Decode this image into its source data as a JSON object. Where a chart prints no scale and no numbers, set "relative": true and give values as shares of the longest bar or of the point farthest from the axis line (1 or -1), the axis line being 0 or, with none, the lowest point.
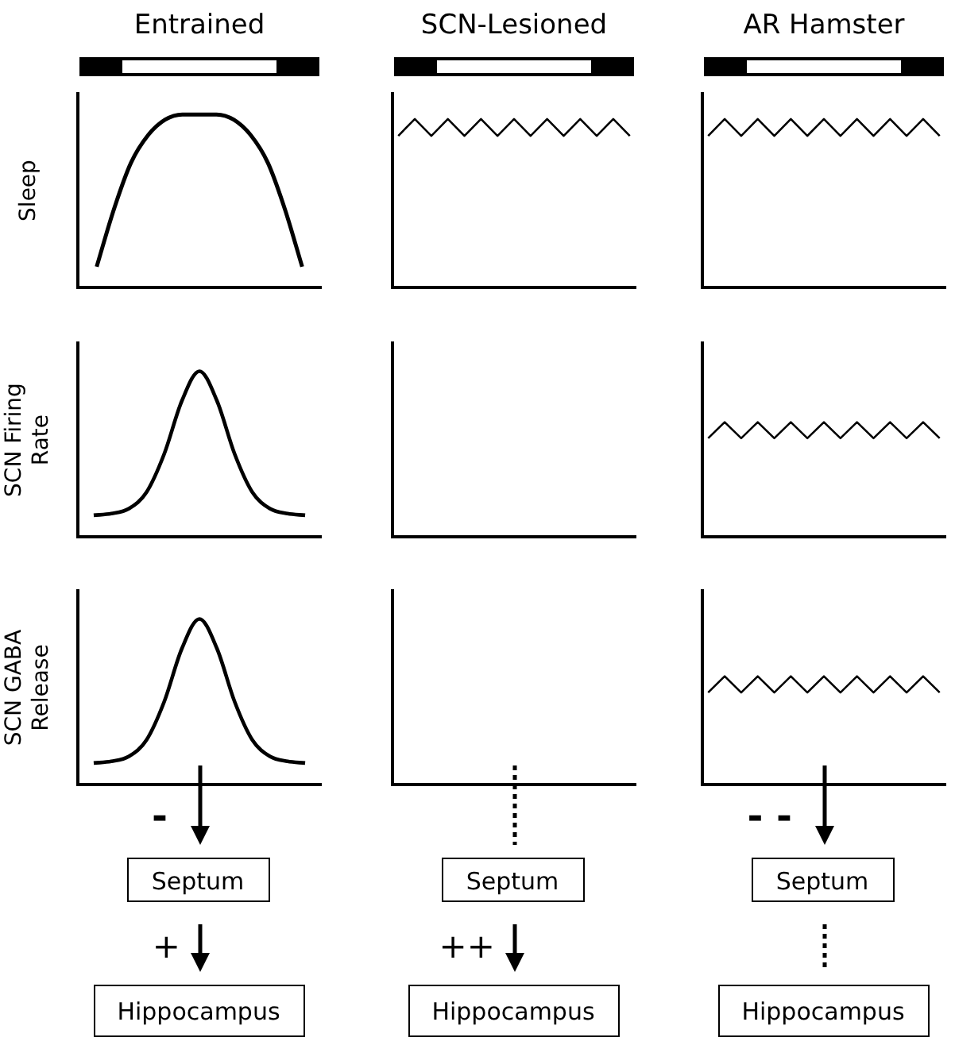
{
  "chart_data": [
    {
      "type": "line",
      "title": "Entrained",
      "ylabel": "Sleep",
      "relative": true,
      "marker": "none",
      "color": "#000000",
      "categories": [
        null,
        null,
        null,
        null,
        null,
        null,
        null,
        null,
        null,
        null,
        null,
        null,
        null
      ],
      "values": [
        0.12,
        0.45,
        0.72,
        0.88,
        0.97,
        1,
        1,
        1,
        0.97,
        0.88,
        0.72,
        0.45,
        0.12
      ]
    },
    {
      "type": "line",
      "title": "SCN-Lesioned",
      "relative": true,
      "marker": "none",
      "color": "#000000",
      "categories": [
        null,
        null,
        null,
        null,
        null,
        null,
        null,
        null,
        null,
        null,
        null,
        null,
        null,
        null,
        null
      ],
      "values": [
        0.9,
        1,
        0.9,
        1,
        0.9,
        1,
        0.9,
        1,
        0.9,
        1,
        0.9,
        1,
        0.9,
        1,
        0.9
      ]
    },
    {
      "type": "line",
      "title": "AR Hamster",
      "relative": true,
      "marker": "none",
      "color": "#000000",
      "categories": [
        null,
        null,
        null,
        null,
        null,
        null,
        null,
        null,
        null,
        null,
        null,
        null,
        null,
        null,
        null
      ],
      "values": [
        0.9,
        1,
        0.9,
        1,
        0.9,
        1,
        0.9,
        1,
        0.9,
        1,
        0.9,
        1,
        0.9,
        1,
        0.9
      ]
    },
    {
      "type": "line",
      "ylabel": "SCN Firing Rate",
      "relative": true,
      "marker": "none",
      "color": "#000000",
      "categories": [
        null,
        null,
        null,
        null,
        null,
        null,
        null,
        null,
        null,
        null,
        null,
        null,
        null
      ],
      "values": [
        0.13,
        0.14,
        0.17,
        0.27,
        0.5,
        0.82,
        1,
        0.82,
        0.5,
        0.27,
        0.17,
        0.14,
        0.13
      ]
    },
    {
      "type": "other"
    },
    {
      "type": "line",
      "relative": true,
      "marker": "none",
      "color": "#000000",
      "categories": [
        null,
        null,
        null,
        null,
        null,
        null,
        null,
        null,
        null,
        null,
        null,
        null,
        null,
        null,
        null
      ],
      "values": [
        0.86,
        1,
        0.86,
        1,
        0.86,
        1,
        0.86,
        1,
        0.86,
        1,
        0.86,
        1,
        0.86,
        1,
        0.86
      ]
    },
    {
      "type": "line",
      "ylabel": "SCN GABA Release",
      "relative": true,
      "marker": "none",
      "color": "#000000",
      "annotations": [
        "-",
        "Septum",
        "+",
        "Hippocampus"
      ],
      "categories": [
        null,
        null,
        null,
        null,
        null,
        null,
        null,
        null,
        null,
        null,
        null,
        null,
        null
      ],
      "values": [
        0.13,
        0.14,
        0.17,
        0.27,
        0.5,
        0.82,
        1,
        0.82,
        0.5,
        0.27,
        0.17,
        0.14,
        0.13
      ]
    },
    {
      "type": "other",
      "annotations": [
        "Septum",
        "++",
        "Hippocampus"
      ]
    },
    {
      "type": "line",
      "relative": true,
      "marker": "none",
      "color": "#000000",
      "annotations": [
        "- -",
        "Septum",
        "Hippocampus"
      ],
      "categories": [
        null,
        null,
        null,
        null,
        null,
        null,
        null,
        null,
        null,
        null,
        null,
        null,
        null,
        null,
        null
      ],
      "values": [
        0.85,
        1,
        0.85,
        1,
        0.85,
        1,
        0.85,
        1,
        0.85,
        1,
        0.85,
        1,
        0.85,
        1,
        0.85
      ]
    }
  ]
}
